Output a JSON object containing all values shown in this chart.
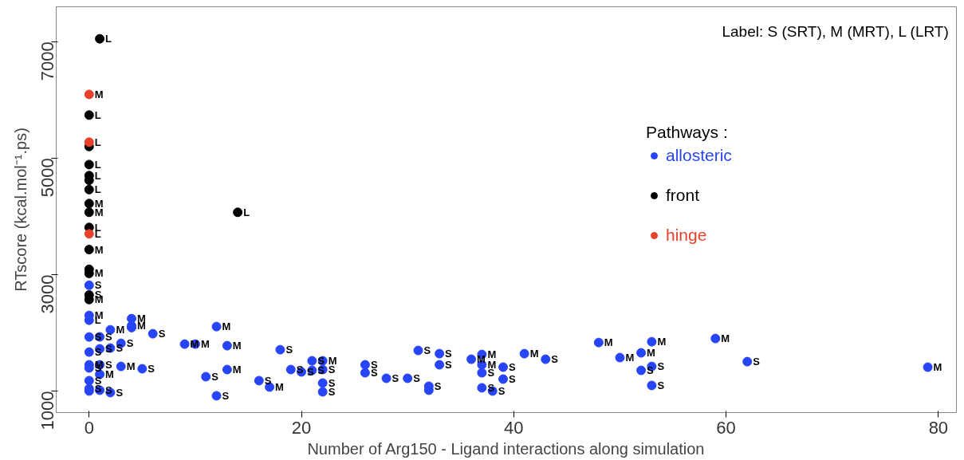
{
  "chart_data": {
    "type": "scatter",
    "xlabel": "Number of Arg150 - Ligand interactions along simulation",
    "ylabel": "RTscore (kcal.mol⁻¹.ps)",
    "legend_title": "Pathways :",
    "annotations": [
      "Label: S (SRT), M (MRT), L (LRT)"
    ],
    "xlim": [
      -3.1,
      81.7
    ],
    "ylim": [
      630,
      7600
    ],
    "xticks": [
      0,
      20,
      40,
      60,
      80
    ],
    "yticks": [
      1000,
      3000,
      5000,
      7000
    ],
    "grid": false,
    "legend": "top right",
    "marker": "circle",
    "series": [
      {
        "name": "allosteric",
        "color": "#2845f5",
        "x": [
          0,
          0,
          0,
          0,
          0,
          0,
          0,
          0,
          0,
          0,
          1,
          1,
          1,
          1,
          1,
          2,
          2,
          2,
          3,
          3,
          4,
          4,
          4,
          5,
          6,
          9,
          10,
          12,
          12,
          13,
          13,
          11,
          18,
          16,
          17,
          19,
          20,
          21,
          21,
          22,
          22,
          22,
          22,
          26,
          26,
          28,
          30,
          31,
          32,
          32,
          33,
          33,
          36,
          37,
          37,
          37,
          37,
          38,
          39,
          39,
          41,
          43,
          48,
          50,
          52,
          52,
          53,
          53,
          53,
          59,
          62,
          79
        ],
        "values": [
          2817,
          2298,
          2216,
          1929,
          1669,
          1451,
          1396,
          1178,
          1041,
          1000,
          1930,
          1724,
          1450,
          1287,
          1014,
          2052,
          1738,
          973,
          1423,
          1820,
          2243,
          2120,
          2090,
          1382,
          1984,
          1806,
          1806,
          2107,
          918,
          1779,
          1369,
          1246,
          1710,
          1178,
          1068,
          1369,
          1328,
          1355,
          1519,
          1519,
          1369,
          1137,
          986,
          1451,
          1314,
          1219,
          1219,
          1697,
          1082,
          1014,
          1642,
          1451,
          1546,
          1628,
          1451,
          1314,
          1055,
          1000,
          1410,
          1205,
          1642,
          1546,
          1833,
          1574,
          1656,
          1355,
          1847,
          1423,
          1096,
          1902,
          1505,
          1410
        ],
        "value_labels": [
          "S",
          "M",
          "L",
          "S",
          "S",
          "M",
          "S",
          "S",
          "S",
          null,
          "S",
          "S",
          "S",
          "M",
          "S",
          "M",
          "S",
          "S",
          "M",
          "S",
          "M",
          "M",
          null,
          "S",
          "S",
          "M",
          "M",
          "M",
          "S",
          "M",
          "M",
          "S",
          "S",
          "S",
          "M",
          "S",
          "S",
          "S",
          "S",
          "M",
          "S",
          "S",
          "S",
          "S",
          "S",
          "S",
          "S",
          "S",
          "S",
          null,
          "S",
          "S",
          "M",
          "M",
          "M",
          "S",
          "S",
          "S",
          "S",
          "S",
          "M",
          "S",
          "M",
          "M",
          "M",
          "S",
          "M",
          "S",
          "S",
          "M",
          "S",
          "M"
        ]
      },
      {
        "name": "front",
        "color": "#000000",
        "x": [
          1,
          0,
          0,
          0,
          0,
          0,
          0,
          0,
          0,
          14,
          0,
          0,
          0,
          0,
          0,
          0
        ],
        "values": [
          7050,
          5740,
          5200,
          4890,
          4700,
          4620,
          4460,
          4220,
          4070,
          4070,
          3810,
          3430,
          3090,
          3020,
          2650,
          2571
        ],
        "value_labels": [
          "L",
          "L",
          null,
          "L",
          "L",
          null,
          "L",
          "M",
          "M",
          "L",
          "L",
          "M",
          null,
          "M",
          "S",
          "M"
        ]
      },
      {
        "name": "hinge",
        "color": "#e8412c",
        "x": [
          0,
          0,
          0
        ],
        "values": [
          6095,
          5275,
          3700
        ],
        "value_labels": [
          "M",
          "L",
          "L"
        ]
      }
    ]
  }
}
